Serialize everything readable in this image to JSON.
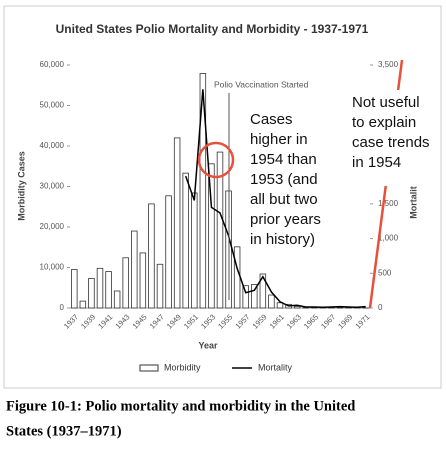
{
  "chart_data": {
    "type": "bar",
    "title": "United States Polio Mortality and Morbidity - 1937-1971",
    "x_label": "Year",
    "y_label": "Morbidity Cases",
    "y2_label": "Mortality",
    "categories": [
      1937,
      null,
      1939,
      null,
      1941,
      null,
      1943,
      null,
      1945,
      null,
      1947,
      null,
      1949,
      null,
      1951,
      null,
      1953,
      null,
      1955,
      null,
      1957,
      null,
      1959,
      null,
      1961,
      null,
      1963,
      null,
      1965,
      null,
      1967,
      null,
      1969,
      null,
      1971
    ],
    "series": [
      {
        "name": "Morbidity",
        "type": "bar",
        "color": "#ffffff",
        "values": [
          9500,
          1700,
          7300,
          9800,
          9000,
          4200,
          12400,
          19000,
          13600,
          25700,
          10800,
          27700,
          42000,
          33300,
          28400,
          57900,
          35600,
          38500,
          28900,
          15100,
          5500,
          5800,
          8400,
          3200,
          1300,
          900,
          400,
          100,
          70,
          100,
          40,
          50,
          20,
          30,
          20
        ]
      },
      {
        "name": "Mortality",
        "type": "line",
        "color": "#000000",
        "axis": "y2",
        "values": [
          null,
          null,
          null,
          null,
          null,
          null,
          null,
          null,
          null,
          null,
          null,
          null,
          null,
          1900,
          1550,
          3150,
          1450,
          1370,
          1040,
          570,
          220,
          255,
          450,
          230,
          90,
          30,
          40,
          15,
          15,
          10,
          15,
          20,
          15,
          10,
          20
        ]
      }
    ],
    "ylim": [
      0,
      60000
    ],
    "yticks": [
      0,
      {
        "value": 10000,
        "label": "10,000"
      },
      {
        "value": 20000,
        "label": "20,000"
      },
      {
        "value": 30000,
        "label": "30,000"
      },
      {
        "value": 40000,
        "label": "40,000"
      },
      {
        "value": 50000,
        "label": "50,000"
      },
      {
        "value": 60000,
        "label": "60,000"
      }
    ],
    "y2lim": [
      0,
      3500
    ],
    "y2ticks": [
      0,
      500,
      {
        "value": 1000,
        "label": "1,000"
      },
      {
        "value": 1500,
        "label": "1,500"
      },
      {
        "value": 3500,
        "label": "3,500"
      }
    ],
    "annotations": {
      "vaccination": "Polio Vaccination Started",
      "cases_note": [
        "Cases",
        "higher in",
        "1954 than",
        "1953 (and",
        "all but two",
        "prior years",
        "in history)"
      ],
      "mortality_note": [
        "Not useful",
        "to explain",
        "case trends",
        "in 1954"
      ]
    },
    "caption": [
      "Figure 10-1: Polio mortality and morbidity in the United",
      "States (1937–1971)"
    ]
  }
}
